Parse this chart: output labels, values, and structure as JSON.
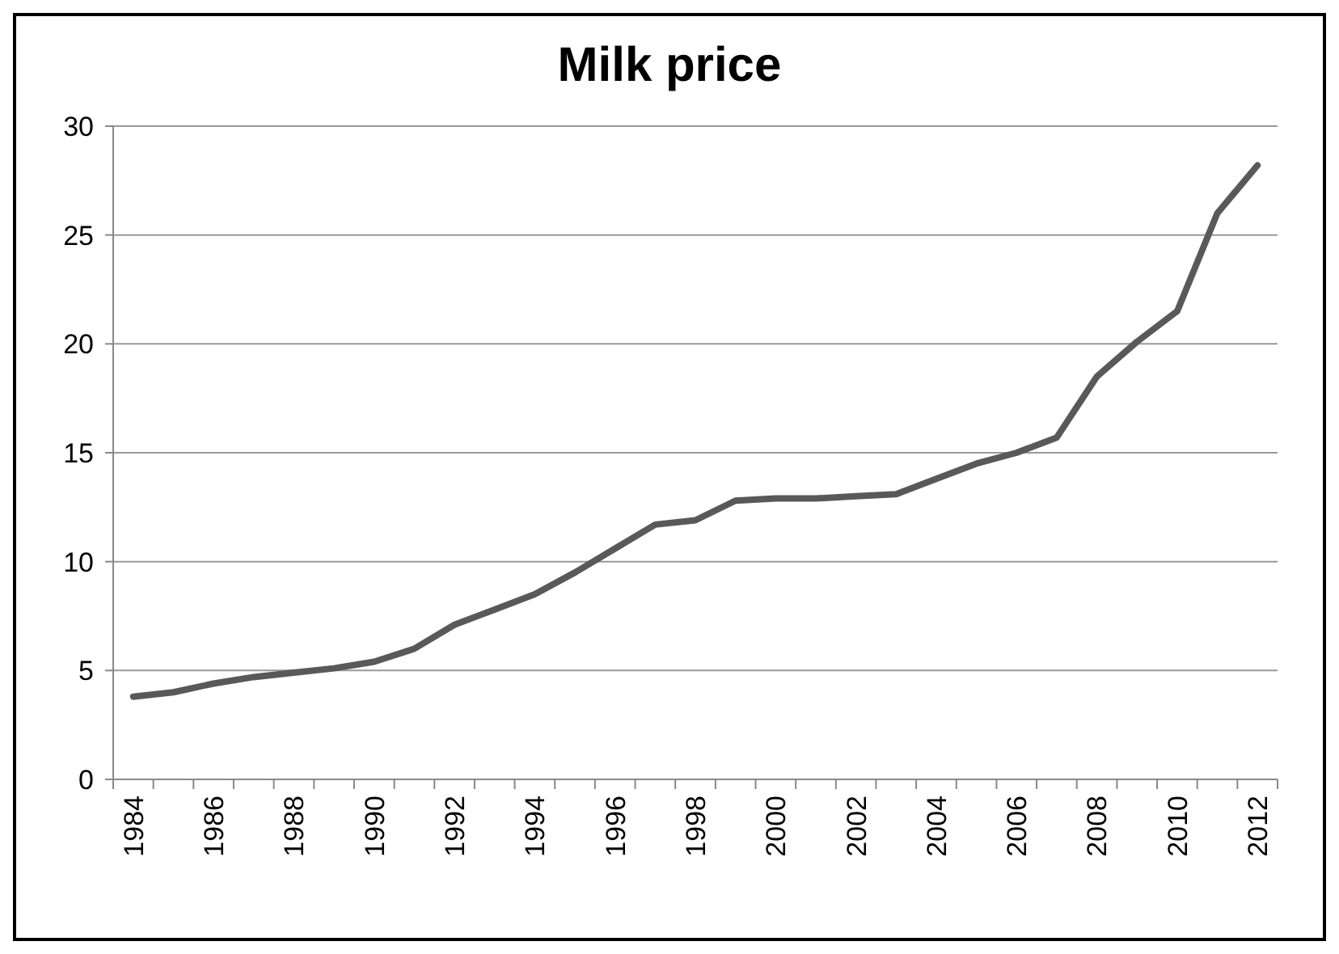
{
  "chart_data": {
    "type": "line",
    "title": "Milk price",
    "categories": [
      "1984",
      null,
      "1986",
      null,
      "1988",
      null,
      "1990",
      null,
      "1992",
      null,
      "1994",
      null,
      "1996",
      null,
      "1998",
      null,
      "2000",
      null,
      "2002",
      null,
      "2004",
      null,
      "2006",
      null,
      "2008",
      null,
      "2010",
      null,
      "2012"
    ],
    "series": [
      {
        "color": "#595959",
        "values": [
          3.8,
          4.0,
          4.4,
          4.7,
          4.9,
          5.1,
          5.4,
          6.0,
          7.1,
          7.8,
          8.5,
          9.5,
          10.6,
          11.7,
          11.9,
          12.8,
          12.9,
          12.9,
          13.0,
          13.1,
          13.8,
          14.5,
          15.0,
          15.7,
          18.5,
          20.1,
          21.5,
          26.0,
          28.2
        ]
      }
    ],
    "ylim": [
      0,
      30
    ],
    "yticks": [
      0,
      5,
      10,
      15,
      20,
      25,
      30
    ],
    "grid": "y"
  }
}
